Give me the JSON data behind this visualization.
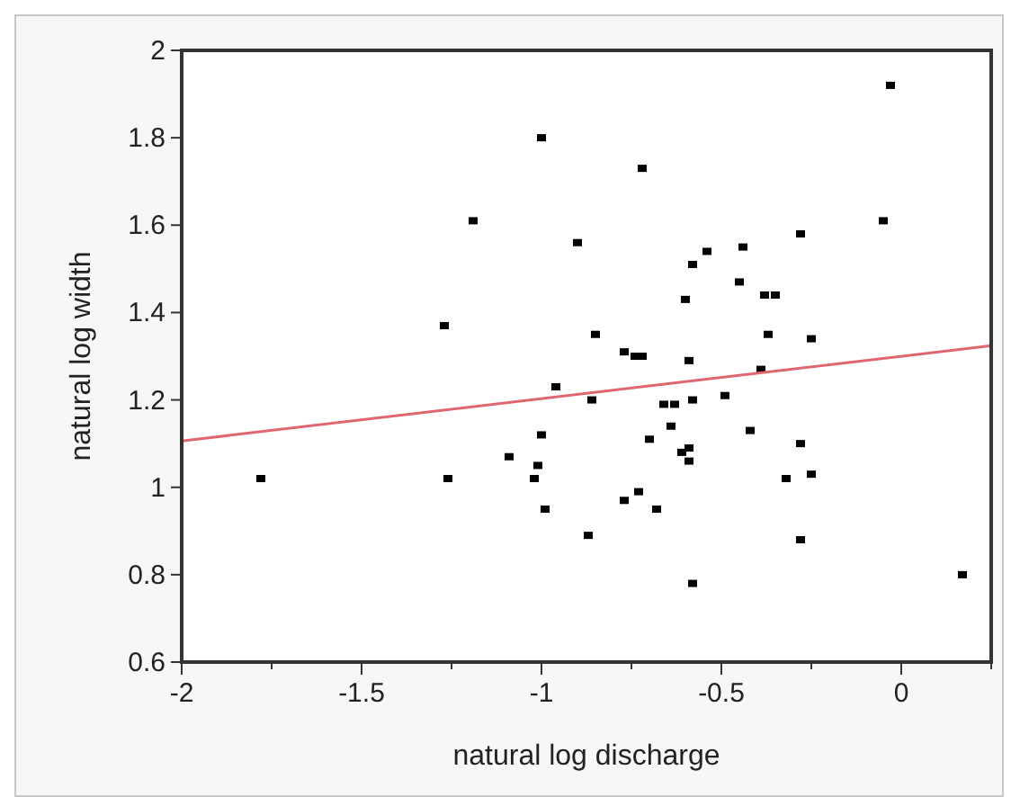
{
  "chart_data": {
    "type": "scatter",
    "xlabel": "natural log discharge",
    "ylabel": "natural log width",
    "xlim": [
      -2,
      0.25
    ],
    "ylim": [
      0.6,
      2
    ],
    "xticks": [
      -2,
      {
        "value": -1.75,
        "label": null
      },
      -1.5,
      {
        "value": -1.25,
        "label": null
      },
      -1,
      {
        "value": -0.75,
        "label": null
      },
      -0.5,
      {
        "value": -0.25,
        "label": null
      },
      0,
      {
        "value": 0.25,
        "label": null
      }
    ],
    "yticks": [
      0.6,
      0.8,
      1,
      1.2,
      1.4,
      1.6,
      1.8,
      2
    ],
    "grid": false,
    "series": [
      {
        "color": "#000000",
        "marker": "square",
        "x": [
          -1.78,
          -1.0,
          -1.19,
          -0.9,
          -1.27,
          -0.96,
          -0.86,
          -1.0,
          -1.09,
          -1.01,
          -1.02,
          -1.26,
          -0.99,
          -0.87,
          -0.03,
          -0.72,
          -0.05,
          -0.28,
          -0.54,
          -0.44,
          -0.58,
          -0.45,
          -0.6,
          -0.38,
          -0.35,
          -0.85,
          -0.37,
          -0.25,
          -0.77,
          -0.74,
          -0.72,
          -0.59,
          -0.39,
          -0.66,
          -0.63,
          -0.58,
          -0.49,
          -0.64,
          -0.42,
          -0.7,
          -0.61,
          -0.59,
          -0.59,
          -0.28,
          -0.25,
          -0.32,
          -0.73,
          -0.77,
          -0.68,
          -0.28,
          -0.58,
          0.17
        ],
        "values": [
          1.02,
          1.8,
          1.61,
          1.56,
          1.37,
          1.23,
          1.2,
          1.12,
          1.07,
          1.05,
          1.02,
          1.02,
          0.95,
          0.89,
          1.92,
          1.73,
          1.61,
          1.58,
          1.54,
          1.55,
          1.51,
          1.47,
          1.43,
          1.44,
          1.44,
          1.35,
          1.35,
          1.34,
          1.31,
          1.3,
          1.3,
          1.29,
          1.27,
          1.19,
          1.19,
          1.2,
          1.21,
          1.14,
          1.13,
          1.11,
          1.08,
          1.09,
          1.06,
          1.1,
          1.03,
          1.02,
          0.99,
          0.97,
          0.95,
          0.88,
          0.78,
          0.8
        ]
      },
      {
        "type": "line",
        "color": "#e06670",
        "x": [
          -2,
          0.25
        ],
        "values": [
          1.106,
          1.324
        ],
        "marker": "none"
      }
    ]
  }
}
